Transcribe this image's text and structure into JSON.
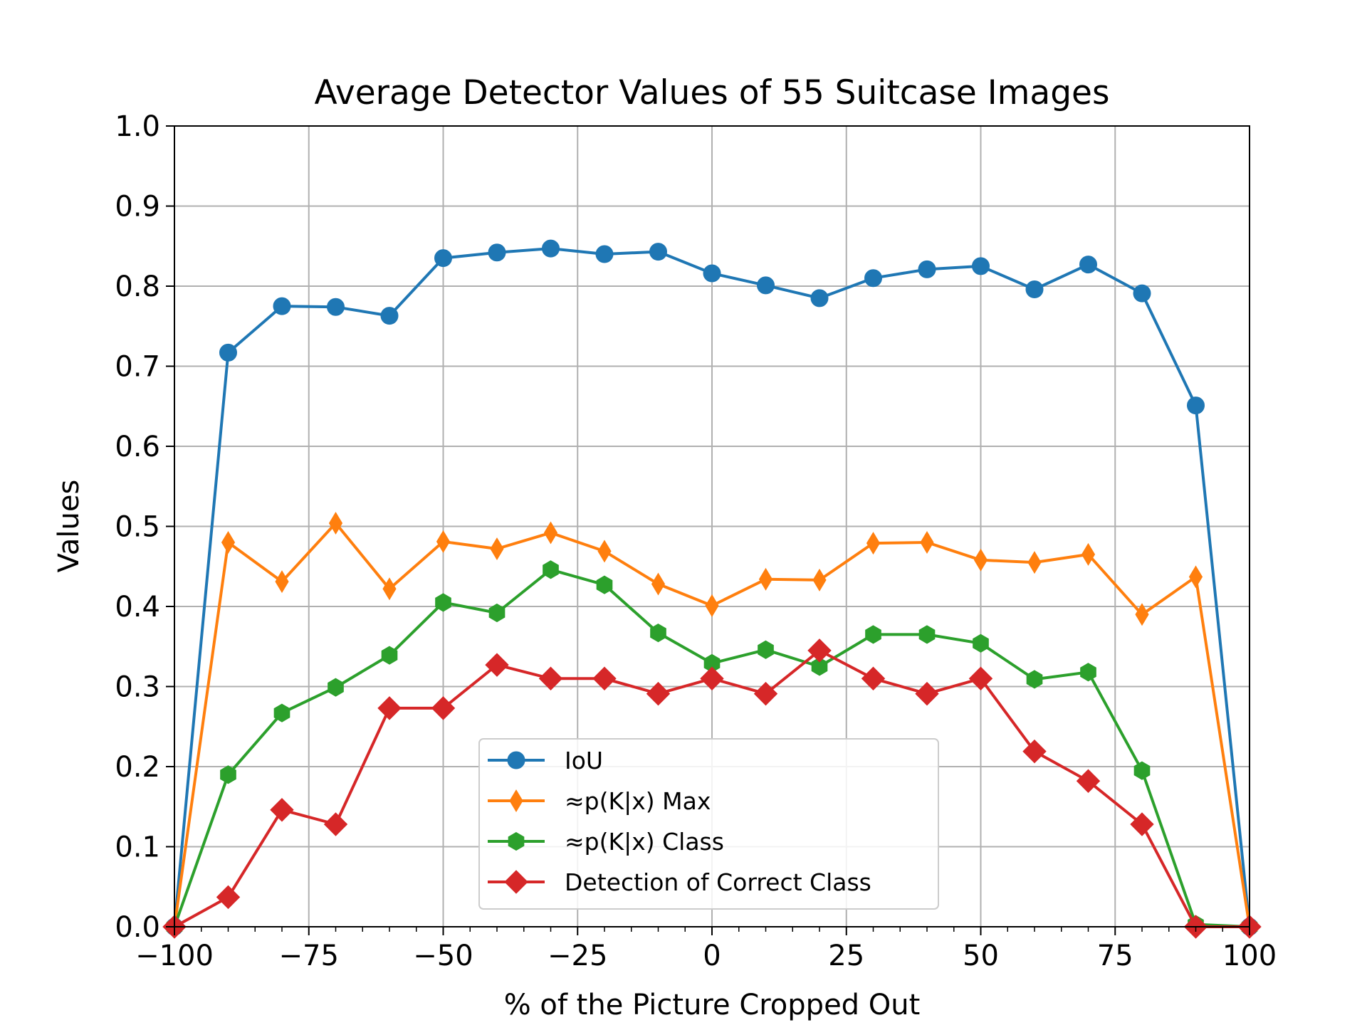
{
  "chart_data": {
    "type": "line",
    "title": "Average Detector Values of 55 Suitcase Images",
    "xlabel": "% of the Picture Cropped Out",
    "ylabel": "Values",
    "xlim": [
      -100,
      100
    ],
    "ylim": [
      0.0,
      1.0
    ],
    "xticks": [
      -100,
      -75,
      -50,
      -25,
      0,
      25,
      50,
      75,
      100
    ],
    "xtick_labels": [
      "−100",
      "−75",
      "−50",
      "−25",
      "0",
      "25",
      "50",
      "75",
      "100"
    ],
    "yticks": [
      0.0,
      0.1,
      0.2,
      0.3,
      0.4,
      0.5,
      0.6,
      0.7,
      0.8,
      0.9,
      1.0
    ],
    "ytick_labels": [
      "0.0",
      "0.1",
      "0.2",
      "0.3",
      "0.4",
      "0.5",
      "0.6",
      "0.7",
      "0.8",
      "0.9",
      "1.0"
    ],
    "grid": true,
    "legend_position": "lower-center",
    "x": [
      -100,
      -90,
      -80,
      -70,
      -60,
      -50,
      -40,
      -30,
      -20,
      -10,
      0,
      10,
      20,
      30,
      40,
      50,
      60,
      70,
      80,
      90,
      100
    ],
    "series": [
      {
        "name": "IoU",
        "color": "#1f77b4",
        "marker": "circle",
        "values": [
          0.0,
          0.717,
          0.775,
          0.774,
          0.763,
          0.835,
          0.842,
          0.847,
          0.84,
          0.843,
          0.816,
          0.801,
          0.785,
          0.81,
          0.821,
          0.825,
          0.796,
          0.827,
          0.791,
          0.651,
          0.0
        ]
      },
      {
        "name": "≈p(K|x) Max",
        "color": "#ff7f0e",
        "marker": "thin-diamond",
        "values": [
          0.0,
          0.48,
          0.431,
          0.504,
          0.422,
          0.481,
          0.472,
          0.492,
          0.469,
          0.428,
          0.401,
          0.434,
          0.433,
          0.479,
          0.48,
          0.458,
          0.455,
          0.465,
          0.39,
          0.437,
          0.0
        ]
      },
      {
        "name": "≈p(K|x) Class",
        "color": "#2ca02c",
        "marker": "hexagon",
        "values": [
          0.0,
          0.19,
          0.267,
          0.299,
          0.339,
          0.405,
          0.392,
          0.446,
          0.427,
          0.367,
          0.329,
          0.346,
          0.325,
          0.365,
          0.365,
          0.354,
          0.309,
          0.318,
          0.195,
          0.003,
          0.0
        ]
      },
      {
        "name": "Detection of Correct Class",
        "color": "#d62728",
        "marker": "diamond",
        "values": [
          0.0,
          0.037,
          0.146,
          0.128,
          0.273,
          0.273,
          0.327,
          0.31,
          0.31,
          0.291,
          0.31,
          0.291,
          0.345,
          0.31,
          0.291,
          0.31,
          0.219,
          0.182,
          0.128,
          0.0,
          0.0
        ]
      }
    ]
  }
}
